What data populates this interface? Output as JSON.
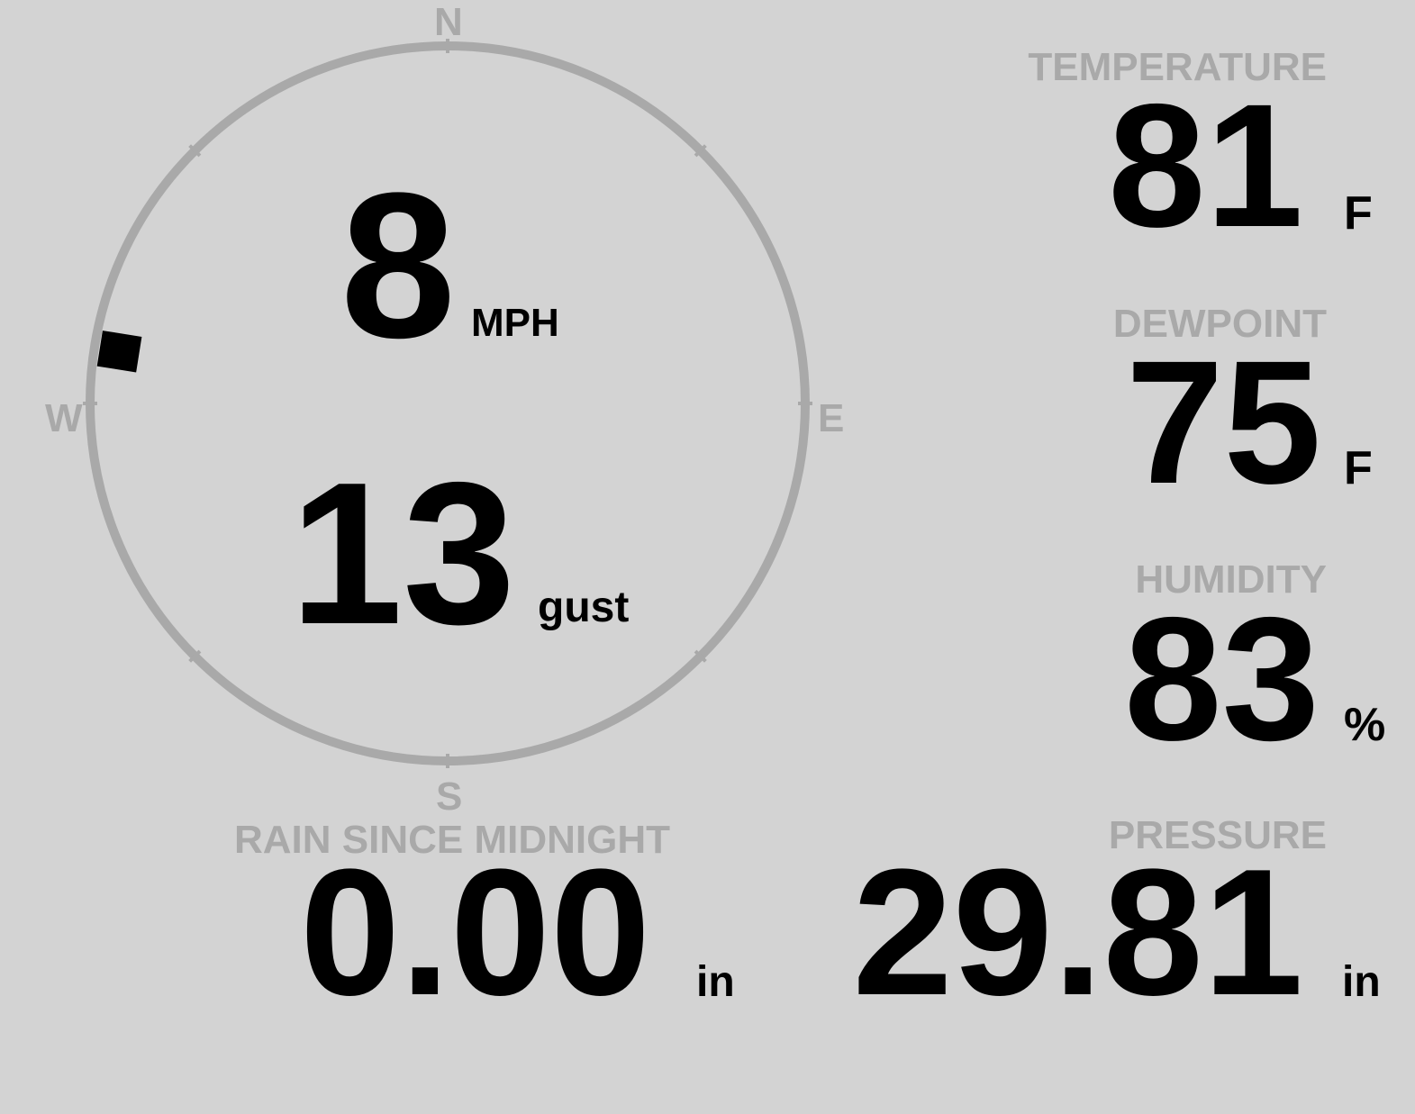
{
  "wind": {
    "speed": "8",
    "speed_unit": "MPH",
    "gust": "13",
    "gust_label": "gust",
    "direction_deg": 279,
    "compass": {
      "n": "N",
      "e": "E",
      "s": "S",
      "w": "W"
    }
  },
  "temperature": {
    "label": "TEMPERATURE",
    "value": "81",
    "unit": "F"
  },
  "dewpoint": {
    "label": "DEWPOINT",
    "value": "75",
    "unit": "F"
  },
  "humidity": {
    "label": "HUMIDITY",
    "value": "83",
    "unit": "%"
  },
  "rain": {
    "label": "RAIN SINCE MIDNIGHT",
    "value": "0.00",
    "unit": "in"
  },
  "pressure": {
    "label": "PRESSURE",
    "value": "29.81",
    "unit": "in"
  },
  "colors": {
    "background": "#d3d3d3",
    "muted": "#a9a9a9",
    "text": "#000000"
  }
}
